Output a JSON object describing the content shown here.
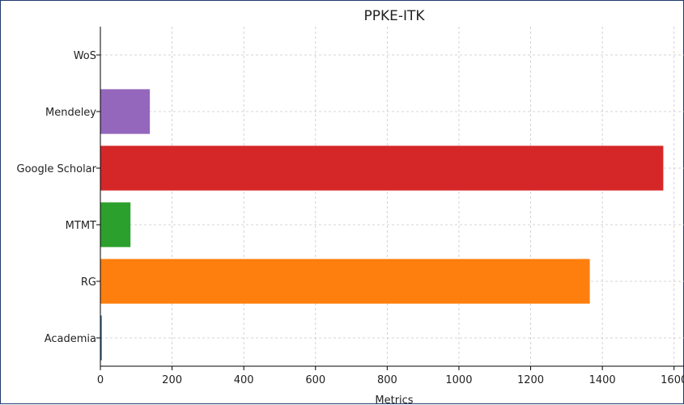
{
  "chart_data": {
    "type": "bar",
    "orientation": "horizontal",
    "title": "PPKE-ITK",
    "xlabel": "Metrics",
    "ylabel": "",
    "categories": [
      "Academia",
      "RG",
      "MTMT",
      "Google Scholar",
      "Mendeley",
      "WoS"
    ],
    "values": [
      4,
      1365,
      84,
      1570,
      138,
      0
    ],
    "bar_colors": [
      "#1f77b4",
      "#ff7f0e",
      "#2ca02c",
      "#d62728",
      "#9467bd",
      "#8c564b"
    ],
    "xlim": [
      0,
      1630
    ],
    "xticks": [
      0,
      200,
      400,
      600,
      800,
      1000,
      1200,
      1400,
      1600
    ],
    "grid": true
  }
}
